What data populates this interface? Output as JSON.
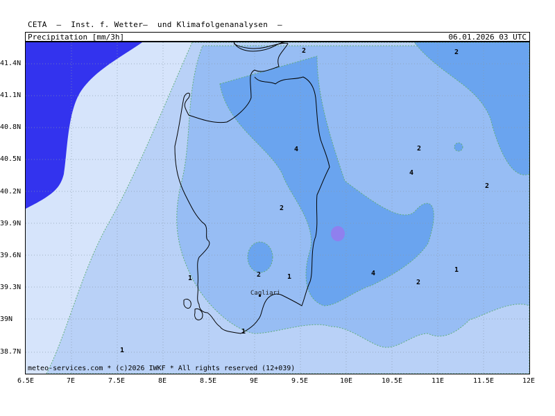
{
  "header": {
    "title": "CETA  –  Inst. f. Wetter–  und Klimafolgenanalysen  –",
    "parameter": "Precipitation [mm/3h]",
    "datetime": "06.01.2026  03  UTC"
  },
  "footer": "meteo-services.com  *  (c)2026 IWKF  *  All rights reserved  (12+039)",
  "city": "Cagliari",
  "axes": {
    "y_labels": [
      "41.4N",
      "41.1N",
      "40.8N",
      "40.5N",
      "40.2N",
      "39.9N",
      "39.6N",
      "39.3N",
      "39N",
      "38.7N"
    ],
    "x_labels": [
      "6.5E",
      "7E",
      "7.5E",
      "8E",
      "8.5E",
      "9E",
      "9.5E",
      "10E",
      "10.5E",
      "11E",
      "11.5E",
      "12E"
    ]
  },
  "contour_labels": [
    "2",
    "2",
    "4",
    "2",
    "4",
    "2",
    "2",
    "2",
    "1",
    "1",
    "4",
    "2",
    "1",
    "1",
    "1"
  ],
  "colors": {
    "level_0": "#d6e4fb",
    "level_1": "#b9d1f7",
    "level_2": "#97bdf4",
    "level_4": "#6aa4ef",
    "level_high": "#3333ee",
    "peak": "#8f80ee",
    "contour": "#5fae7a"
  }
}
